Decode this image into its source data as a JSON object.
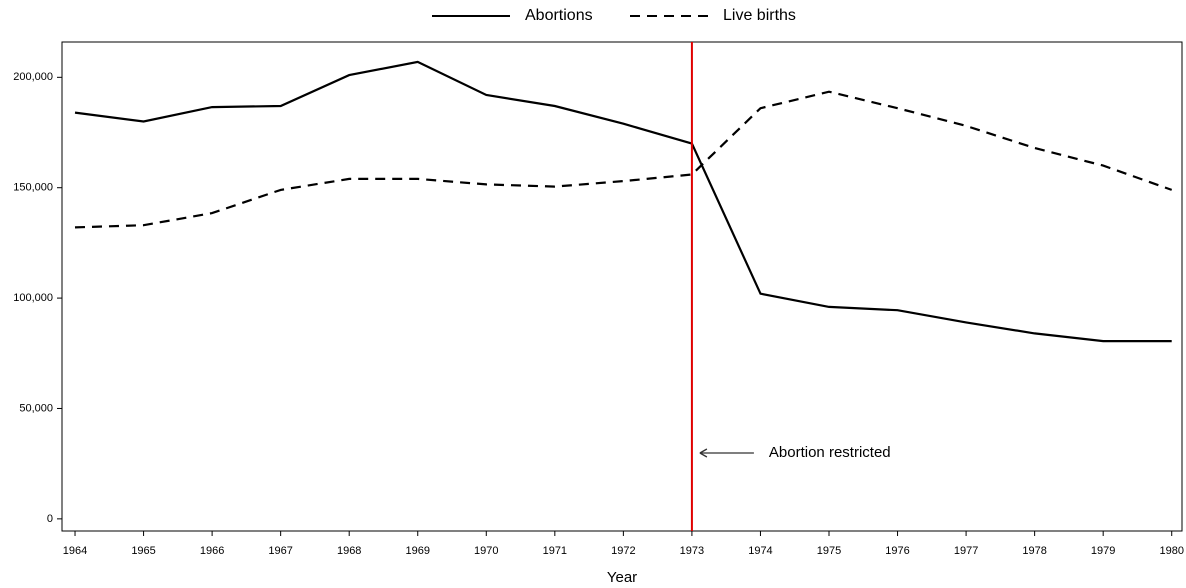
{
  "chart_data": {
    "type": "line",
    "x_label": "Year",
    "x": [
      1964,
      1965,
      1966,
      1967,
      1968,
      1969,
      1970,
      1971,
      1972,
      1973,
      1974,
      1975,
      1976,
      1977,
      1978,
      1979,
      1980
    ],
    "series": [
      {
        "name": "Abortions",
        "color": "#000000",
        "dash": "solid",
        "values": [
          184000,
          180000,
          186500,
          187000,
          201000,
          207000,
          192000,
          187000,
          179000,
          170000,
          102000,
          96000,
          94500,
          89000,
          84000,
          80500,
          80500
        ]
      },
      {
        "name": "Live births",
        "color": "#000000",
        "dash": "dashed",
        "values": [
          132000,
          133000,
          138500,
          149000,
          154000,
          154000,
          151500,
          150500,
          153000,
          156000,
          186000,
          193500,
          186000,
          178000,
          168000,
          160000,
          149000
        ]
      }
    ],
    "xlim": [
      1963.81,
      1980.15
    ],
    "ylim": [
      -5500,
      216000
    ],
    "xticks": [
      1964,
      1965,
      1966,
      1967,
      1968,
      1969,
      1970,
      1971,
      1972,
      1973,
      1974,
      1975,
      1976,
      1977,
      1978,
      1979,
      1980
    ],
    "yticks": [
      0,
      {
        "value": 50000,
        "label": "50,000"
      },
      {
        "value": 100000,
        "label": "100,000"
      },
      {
        "value": 150000,
        "label": "150,000"
      },
      {
        "value": 200000,
        "label": "200,000"
      }
    ],
    "vline": {
      "x": 1973,
      "color": "#e00000"
    },
    "annotation": "Abortion restricted",
    "grid": false,
    "legend": "top"
  }
}
